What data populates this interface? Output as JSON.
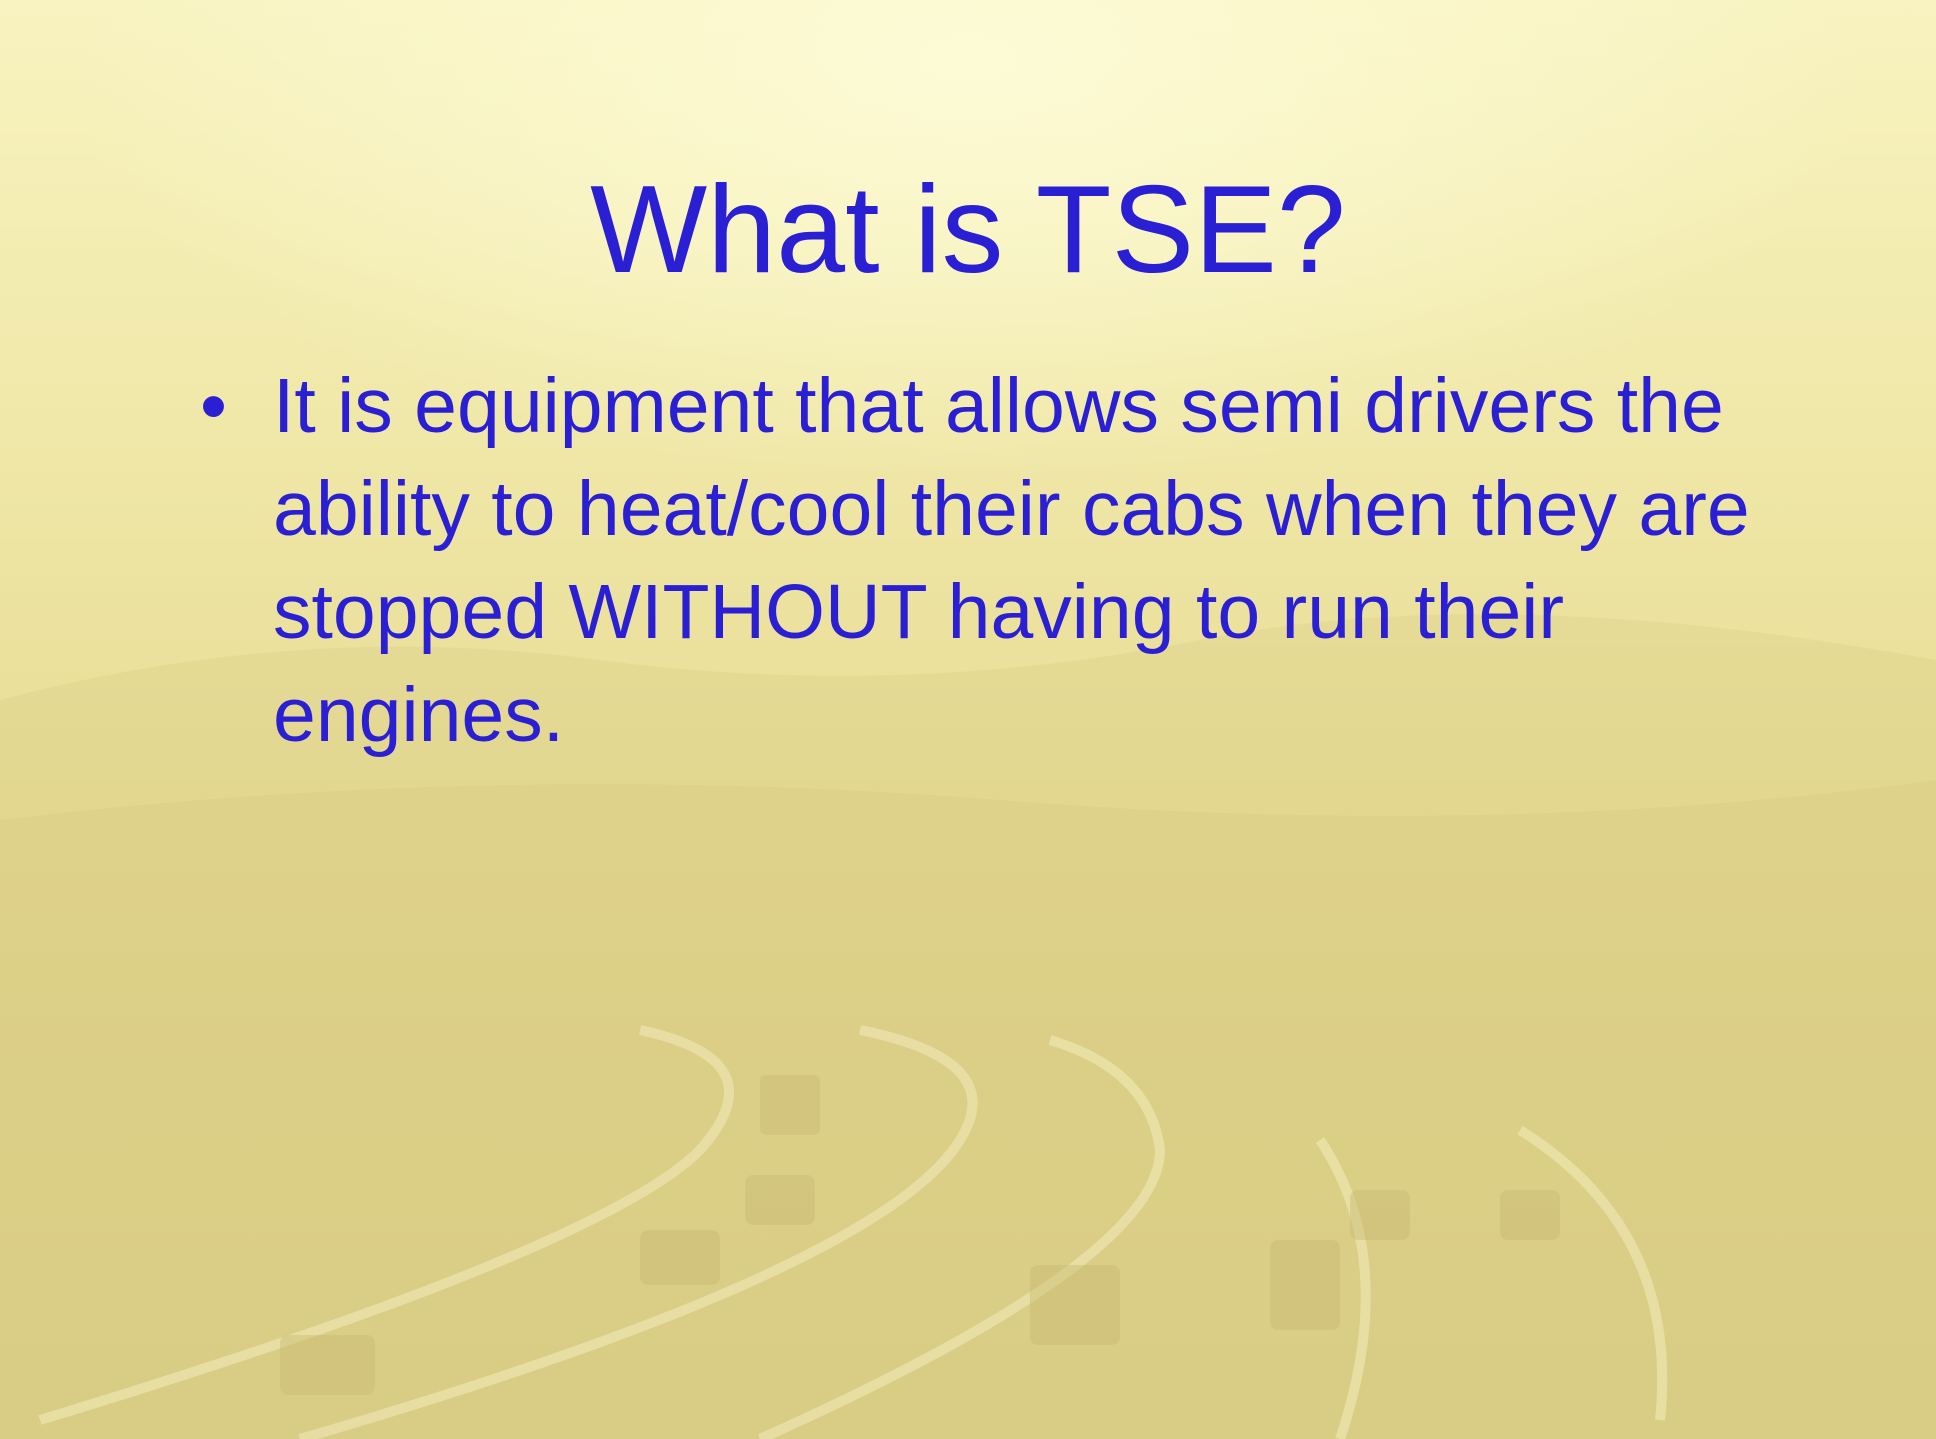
{
  "slide": {
    "title": "What is TSE?",
    "bullets": [
      "It is equipment that allows semi drivers the ability to heat/cool their cabs when they are stopped WITHOUT having to run their engines."
    ]
  }
}
